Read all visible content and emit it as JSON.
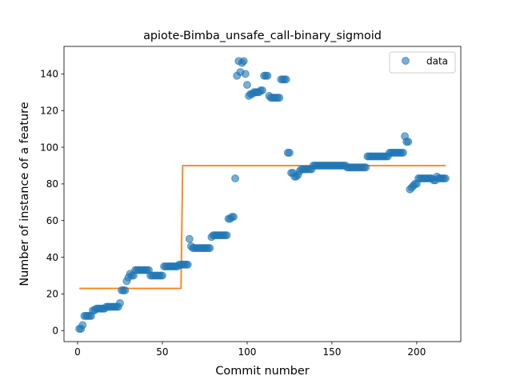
{
  "chart_data": {
    "type": "scatter",
    "title": "apiote-Bimba_unsafe_call-binary_sigmoid",
    "xlabel": "Commit number",
    "ylabel": "Number of instance of a feature",
    "xlim": [
      -8,
      226
    ],
    "ylim": [
      -6,
      155
    ],
    "x_ticks": [
      0,
      50,
      100,
      150,
      200
    ],
    "y_ticks": [
      0,
      20,
      40,
      60,
      80,
      100,
      120,
      140
    ],
    "grid": false,
    "legend": {
      "placement": "top-right",
      "entries": [
        "data"
      ]
    },
    "colors": {
      "data": "#1f77b4",
      "fit": "#ff7f0e"
    },
    "series": [
      {
        "name": "data",
        "kind": "scatter",
        "points": [
          [
            1,
            1
          ],
          [
            2,
            1
          ],
          [
            3,
            3
          ],
          [
            4,
            8
          ],
          [
            5,
            8
          ],
          [
            6,
            8
          ],
          [
            7,
            8
          ],
          [
            8,
            8
          ],
          [
            9,
            11
          ],
          [
            10,
            11
          ],
          [
            11,
            12
          ],
          [
            12,
            12
          ],
          [
            13,
            12
          ],
          [
            14,
            12
          ],
          [
            15,
            12
          ],
          [
            16,
            12
          ],
          [
            17,
            13
          ],
          [
            18,
            13
          ],
          [
            19,
            13
          ],
          [
            20,
            13
          ],
          [
            21,
            13
          ],
          [
            22,
            13
          ],
          [
            23,
            13
          ],
          [
            24,
            13
          ],
          [
            25,
            15
          ],
          [
            26,
            22
          ],
          [
            27,
            22
          ],
          [
            28,
            22
          ],
          [
            29,
            27
          ],
          [
            30,
            29
          ],
          [
            31,
            31
          ],
          [
            32,
            30
          ],
          [
            33,
            30
          ],
          [
            34,
            33
          ],
          [
            35,
            33
          ],
          [
            36,
            33
          ],
          [
            37,
            33
          ],
          [
            38,
            33
          ],
          [
            39,
            33
          ],
          [
            40,
            33
          ],
          [
            41,
            33
          ],
          [
            42,
            33
          ],
          [
            43,
            30
          ],
          [
            44,
            30
          ],
          [
            45,
            30
          ],
          [
            46,
            30
          ],
          [
            47,
            30
          ],
          [
            48,
            30
          ],
          [
            49,
            30
          ],
          [
            50,
            30
          ],
          [
            51,
            35
          ],
          [
            52,
            35
          ],
          [
            53,
            35
          ],
          [
            54,
            35
          ],
          [
            55,
            35
          ],
          [
            56,
            35
          ],
          [
            57,
            35
          ],
          [
            58,
            35
          ],
          [
            59,
            35
          ],
          [
            60,
            36
          ],
          [
            61,
            36
          ],
          [
            62,
            36
          ],
          [
            63,
            36
          ],
          [
            64,
            36
          ],
          [
            65,
            36
          ],
          [
            66,
            50
          ],
          [
            67,
            46
          ],
          [
            68,
            45
          ],
          [
            69,
            45
          ],
          [
            70,
            45
          ],
          [
            71,
            45
          ],
          [
            72,
            45
          ],
          [
            73,
            45
          ],
          [
            74,
            45
          ],
          [
            75,
            45
          ],
          [
            76,
            45
          ],
          [
            77,
            45
          ],
          [
            78,
            45
          ],
          [
            79,
            51
          ],
          [
            80,
            52
          ],
          [
            81,
            52
          ],
          [
            82,
            52
          ],
          [
            83,
            52
          ],
          [
            84,
            52
          ],
          [
            85,
            52
          ],
          [
            86,
            52
          ],
          [
            87,
            52
          ],
          [
            88,
            52
          ],
          [
            89,
            61
          ],
          [
            90,
            61
          ],
          [
            91,
            62
          ],
          [
            92,
            62
          ],
          [
            93,
            83
          ],
          [
            94,
            139
          ],
          [
            95,
            147
          ],
          [
            96,
            141
          ],
          [
            97,
            146
          ],
          [
            98,
            147
          ],
          [
            99,
            140
          ],
          [
            100,
            134
          ],
          [
            101,
            128
          ],
          [
            102,
            129
          ],
          [
            103,
            129
          ],
          [
            104,
            130
          ],
          [
            105,
            130
          ],
          [
            106,
            130
          ],
          [
            107,
            130
          ],
          [
            108,
            131
          ],
          [
            109,
            131
          ],
          [
            110,
            139
          ],
          [
            111,
            139
          ],
          [
            112,
            139
          ],
          [
            113,
            128
          ],
          [
            114,
            127
          ],
          [
            115,
            127
          ],
          [
            116,
            127
          ],
          [
            117,
            127
          ],
          [
            118,
            127
          ],
          [
            119,
            127
          ],
          [
            120,
            137
          ],
          [
            121,
            137
          ],
          [
            122,
            137
          ],
          [
            123,
            137
          ],
          [
            124,
            97
          ],
          [
            125,
            97
          ],
          [
            126,
            86
          ],
          [
            127,
            86
          ],
          [
            128,
            84
          ],
          [
            129,
            84
          ],
          [
            130,
            85
          ],
          [
            131,
            87
          ],
          [
            132,
            88
          ],
          [
            133,
            88
          ],
          [
            134,
            88
          ],
          [
            135,
            88
          ],
          [
            136,
            88
          ],
          [
            137,
            88
          ],
          [
            138,
            88
          ],
          [
            139,
            90
          ],
          [
            140,
            90
          ],
          [
            141,
            90
          ],
          [
            142,
            90
          ],
          [
            143,
            90
          ],
          [
            144,
            90
          ],
          [
            145,
            90
          ],
          [
            146,
            90
          ],
          [
            147,
            90
          ],
          [
            148,
            90
          ],
          [
            149,
            90
          ],
          [
            150,
            90
          ],
          [
            151,
            90
          ],
          [
            152,
            90
          ],
          [
            153,
            90
          ],
          [
            154,
            90
          ],
          [
            155,
            90
          ],
          [
            156,
            90
          ],
          [
            157,
            90
          ],
          [
            158,
            90
          ],
          [
            159,
            89
          ],
          [
            160,
            89
          ],
          [
            161,
            89
          ],
          [
            162,
            89
          ],
          [
            163,
            89
          ],
          [
            164,
            89
          ],
          [
            165,
            89
          ],
          [
            166,
            89
          ],
          [
            167,
            89
          ],
          [
            168,
            89
          ],
          [
            169,
            89
          ],
          [
            170,
            89
          ],
          [
            171,
            95
          ],
          [
            172,
            95
          ],
          [
            173,
            95
          ],
          [
            174,
            95
          ],
          [
            175,
            95
          ],
          [
            176,
            95
          ],
          [
            177,
            95
          ],
          [
            178,
            95
          ],
          [
            179,
            95
          ],
          [
            180,
            95
          ],
          [
            181,
            95
          ],
          [
            182,
            95
          ],
          [
            183,
            95
          ],
          [
            184,
            97
          ],
          [
            185,
            97
          ],
          [
            186,
            97
          ],
          [
            187,
            97
          ],
          [
            188,
            97
          ],
          [
            189,
            97
          ],
          [
            190,
            97
          ],
          [
            191,
            97
          ],
          [
            192,
            97
          ],
          [
            193,
            106
          ],
          [
            194,
            103
          ],
          [
            195,
            103
          ],
          [
            196,
            77
          ],
          [
            197,
            78
          ],
          [
            198,
            79
          ],
          [
            199,
            80
          ],
          [
            200,
            80
          ],
          [
            201,
            83
          ],
          [
            202,
            83
          ],
          [
            203,
            83
          ],
          [
            204,
            83
          ],
          [
            205,
            83
          ],
          [
            206,
            83
          ],
          [
            207,
            83
          ],
          [
            208,
            83
          ],
          [
            209,
            83
          ],
          [
            210,
            82
          ],
          [
            211,
            82
          ],
          [
            212,
            84
          ],
          [
            213,
            83
          ],
          [
            214,
            83
          ],
          [
            215,
            83
          ],
          [
            216,
            83
          ],
          [
            217,
            83
          ]
        ]
      },
      {
        "name": "",
        "kind": "line",
        "points": [
          [
            1,
            23
          ],
          [
            61,
            23
          ],
          [
            62,
            90
          ],
          [
            217,
            90
          ]
        ]
      }
    ]
  }
}
